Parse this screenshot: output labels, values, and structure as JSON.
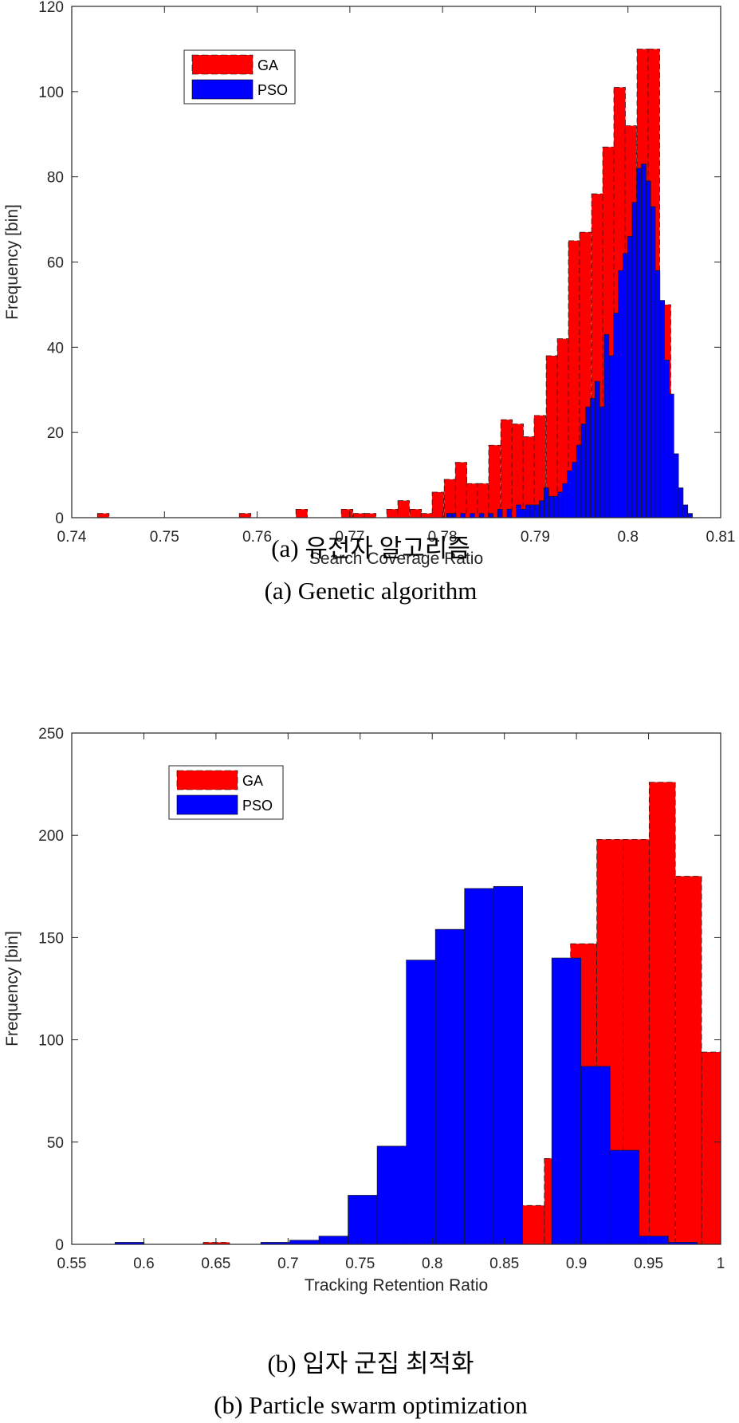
{
  "colors": {
    "ga": "#ff0000",
    "pso": "#0000ff"
  },
  "captions": {
    "a_ko": "(a)  유전자  알고리즘",
    "a_en": "(a)  Genetic  algorithm",
    "b_ko": "(b)  입자  군집  최적화",
    "b_en": "(b)  Particle  swarm  optimization"
  },
  "chart_data": [
    {
      "type": "bar",
      "subtype": "overlaid-histogram",
      "xlabel": "Search Coverage Ratio",
      "ylabel": "Frequency [bin]",
      "xlim": [
        0.74,
        0.81
      ],
      "ylim": [
        0,
        120
      ],
      "xticks": [
        0.74,
        0.75,
        0.76,
        0.77,
        0.78,
        0.79,
        0.8,
        0.81
      ],
      "xtick_labels": [
        "0.74",
        "0.75",
        "0.76",
        "0.77",
        "0.78",
        "0.79",
        "0.8",
        "0.81"
      ],
      "yticks": [
        0,
        20,
        40,
        60,
        80,
        100,
        120
      ],
      "ytick_labels": [
        "0",
        "20",
        "40",
        "60",
        "80",
        "100",
        "120"
      ],
      "legend": [
        "GA",
        "PSO"
      ],
      "legend_position": "top-left",
      "series": [
        {
          "name": "GA",
          "bin_width": 0.00125,
          "bins": [
            [
              0.7434,
              1
            ],
            [
              0.7587,
              1
            ],
            [
              0.7648,
              2
            ],
            [
              0.7697,
              2
            ],
            [
              0.771,
              1
            ],
            [
              0.7722,
              1
            ],
            [
              0.7746,
              2
            ],
            [
              0.7758,
              4
            ],
            [
              0.7771,
              2
            ],
            [
              0.7783,
              1
            ],
            [
              0.7795,
              6
            ],
            [
              0.7808,
              9
            ],
            [
              0.782,
              13
            ],
            [
              0.7832,
              8
            ],
            [
              0.7844,
              8
            ],
            [
              0.7856,
              17
            ],
            [
              0.7869,
              23
            ],
            [
              0.7881,
              22
            ],
            [
              0.7893,
              19
            ],
            [
              0.7905,
              24
            ],
            [
              0.7918,
              38
            ],
            [
              0.793,
              42
            ],
            [
              0.7942,
              65
            ],
            [
              0.7954,
              67
            ],
            [
              0.7967,
              76
            ],
            [
              0.7979,
              87
            ],
            [
              0.7991,
              101
            ],
            [
              0.8003,
              92
            ],
            [
              0.8016,
              110
            ],
            [
              0.8028,
              110
            ],
            [
              0.804,
              50
            ],
            [
              0.8052,
              5
            ]
          ]
        },
        {
          "name": "PSO",
          "bin_width": 0.0005,
          "bins": [
            [
              0.7807,
              1
            ],
            [
              0.7812,
              1
            ],
            [
              0.7822,
              1
            ],
            [
              0.7832,
              1
            ],
            [
              0.7842,
              1
            ],
            [
              0.7852,
              1
            ],
            [
              0.7862,
              2
            ],
            [
              0.7872,
              2
            ],
            [
              0.7882,
              3
            ],
            [
              0.7887,
              2
            ],
            [
              0.7892,
              3
            ],
            [
              0.7897,
              3
            ],
            [
              0.7902,
              3
            ],
            [
              0.7907,
              4
            ],
            [
              0.7912,
              7
            ],
            [
              0.7917,
              5
            ],
            [
              0.7922,
              5
            ],
            [
              0.7927,
              6
            ],
            [
              0.7932,
              8
            ],
            [
              0.7937,
              11
            ],
            [
              0.7942,
              13
            ],
            [
              0.7947,
              17
            ],
            [
              0.7952,
              22
            ],
            [
              0.7957,
              26
            ],
            [
              0.7962,
              28
            ],
            [
              0.7967,
              32
            ],
            [
              0.7972,
              26
            ],
            [
              0.7977,
              43
            ],
            [
              0.7982,
              38
            ],
            [
              0.7987,
              48
            ],
            [
              0.7992,
              58
            ],
            [
              0.7997,
              62
            ],
            [
              0.8002,
              66
            ],
            [
              0.8007,
              74
            ],
            [
              0.8012,
              82
            ],
            [
              0.8017,
              83
            ],
            [
              0.8022,
              79
            ],
            [
              0.8027,
              73
            ],
            [
              0.8032,
              58
            ],
            [
              0.8037,
              51
            ],
            [
              0.8042,
              37
            ],
            [
              0.8047,
              29
            ],
            [
              0.8052,
              15
            ],
            [
              0.8057,
              7
            ],
            [
              0.8062,
              3
            ],
            [
              0.8067,
              1
            ]
          ]
        }
      ]
    },
    {
      "type": "bar",
      "subtype": "overlaid-histogram",
      "xlabel": "Tracking Retention Ratio",
      "ylabel": "Frequency [bin]",
      "xlim": [
        0.55,
        1
      ],
      "ylim": [
        0,
        250
      ],
      "xticks": [
        0.55,
        0.6,
        0.65,
        0.7,
        0.75,
        0.8,
        0.85,
        0.9,
        0.95,
        1
      ],
      "xtick_labels": [
        "0.55",
        "0.6",
        "0.65",
        "0.7",
        "0.75",
        "0.8",
        "0.85",
        "0.9",
        "0.95",
        "1"
      ],
      "yticks": [
        0,
        50,
        100,
        150,
        200,
        250
      ],
      "ytick_labels": [
        "0",
        "50",
        "100",
        "150",
        "200",
        "250"
      ],
      "legend": [
        "GA",
        "PSO"
      ],
      "legend_position": "top-left",
      "series": [
        {
          "name": "GA",
          "bin_width": 0.0182,
          "bins": [
            [
              0.6503,
              1
            ],
            [
              0.8686,
              19
            ],
            [
              0.8868,
              42
            ],
            [
              0.905,
              147
            ],
            [
              0.9232,
              198
            ],
            [
              0.9414,
              198
            ],
            [
              0.9595,
              226
            ],
            [
              0.9777,
              180
            ],
            [
              0.9959,
              94
            ]
          ]
        },
        {
          "name": "PSO",
          "bin_width": 0.0202,
          "bins": [
            [
              0.5901,
              1
            ],
            [
              0.6912,
              1
            ],
            [
              0.7113,
              2
            ],
            [
              0.7315,
              4
            ],
            [
              0.7517,
              24
            ],
            [
              0.7719,
              48
            ],
            [
              0.7921,
              139
            ],
            [
              0.8123,
              154
            ],
            [
              0.8325,
              174
            ],
            [
              0.8526,
              175
            ],
            [
              0.8728,
              0
            ],
            [
              0.893,
              140
            ],
            [
              0.9132,
              87
            ],
            [
              0.9334,
              46
            ],
            [
              0.9536,
              4
            ],
            [
              0.9737,
              1
            ]
          ]
        }
      ]
    }
  ]
}
